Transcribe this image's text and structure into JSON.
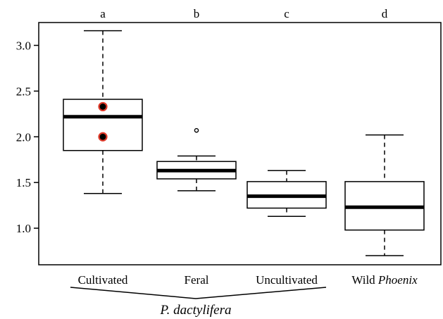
{
  "chart_data": {
    "type": "box",
    "ylim": [
      0.6,
      3.25
    ],
    "yticks": [
      1.0,
      1.5,
      2.0,
      2.5,
      3.0
    ],
    "ytick_labels": [
      "1.0",
      "1.5",
      "2.0",
      "2.5",
      "3.0"
    ],
    "grid": false,
    "categories": [
      {
        "label": "Cultivated",
        "label_italic": "",
        "letter": "a",
        "whisker_low": 1.38,
        "q1": 1.85,
        "median": 2.22,
        "q3": 2.41,
        "whisker_high": 3.16,
        "outliers": [],
        "highlighted_points": [
          2.33,
          2.0
        ]
      },
      {
        "label": "Feral",
        "label_italic": "",
        "letter": "b",
        "whisker_low": 1.41,
        "q1": 1.54,
        "median": 1.63,
        "q3": 1.73,
        "whisker_high": 1.79,
        "outliers": [
          2.07
        ],
        "highlighted_points": []
      },
      {
        "label": "Uncultivated",
        "label_italic": "",
        "letter": "c",
        "whisker_low": 1.13,
        "q1": 1.22,
        "median": 1.35,
        "q3": 1.51,
        "whisker_high": 1.63,
        "outliers": [],
        "highlighted_points": []
      },
      {
        "label": "Wild ",
        "label_italic": "Phoenix",
        "letter": "d",
        "whisker_low": 0.7,
        "q1": 0.98,
        "median": 1.23,
        "q3": 1.51,
        "whisker_high": 2.02,
        "outliers": [],
        "highlighted_points": []
      }
    ],
    "group_label": "P. dactylifera",
    "group_span": [
      "Cultivated",
      "Uncultivated"
    ],
    "highlight_color": "#e03a2a",
    "point_color": "#000000"
  }
}
